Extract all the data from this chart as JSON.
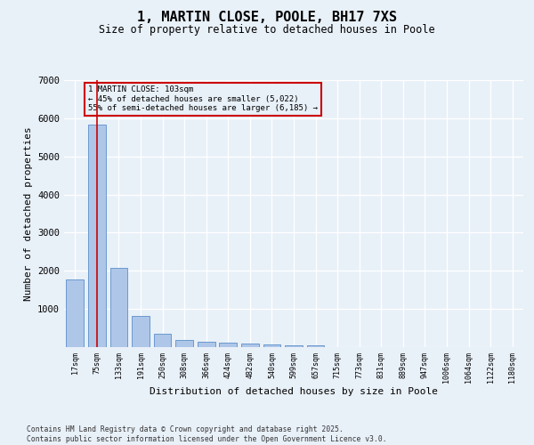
{
  "title_line1": "1, MARTIN CLOSE, POOLE, BH17 7XS",
  "title_line2": "Size of property relative to detached houses in Poole",
  "xlabel": "Distribution of detached houses by size in Poole",
  "ylabel": "Number of detached properties",
  "categories": [
    "17sqm",
    "75sqm",
    "133sqm",
    "191sqm",
    "250sqm",
    "308sqm",
    "366sqm",
    "424sqm",
    "482sqm",
    "540sqm",
    "599sqm",
    "657sqm",
    "715sqm",
    "773sqm",
    "831sqm",
    "889sqm",
    "947sqm",
    "1006sqm",
    "1064sqm",
    "1122sqm",
    "1180sqm"
  ],
  "values": [
    1780,
    5830,
    2080,
    820,
    340,
    190,
    130,
    110,
    90,
    60,
    55,
    50,
    0,
    0,
    0,
    0,
    0,
    0,
    0,
    0,
    0
  ],
  "bar_color": "#aec6e8",
  "bar_edge_color": "#5b8fc9",
  "vline_color": "#cc0000",
  "vline_x_index": 1,
  "annotation_text": "1 MARTIN CLOSE: 103sqm\n← 45% of detached houses are smaller (5,022)\n55% of semi-detached houses are larger (6,185) →",
  "annotation_box_color": "#cc0000",
  "ylim": [
    0,
    7000
  ],
  "yticks": [
    0,
    1000,
    2000,
    3000,
    4000,
    5000,
    6000,
    7000
  ],
  "background_color": "#e8f0f8",
  "grid_color": "#ffffff",
  "footnote": "Contains HM Land Registry data © Crown copyright and database right 2025.\nContains public sector information licensed under the Open Government Licence v3.0."
}
